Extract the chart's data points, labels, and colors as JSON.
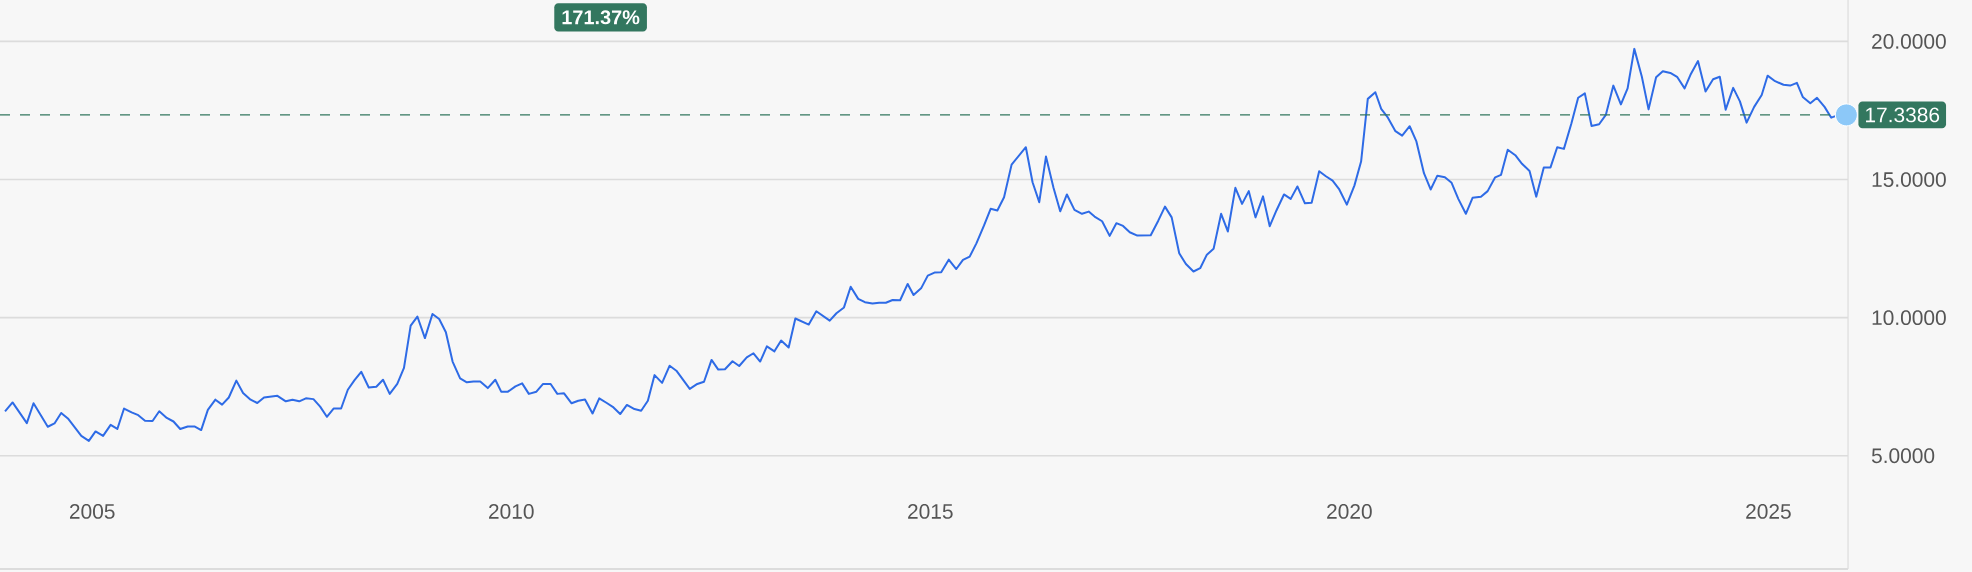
{
  "chart_data": {
    "type": "line",
    "xlim": [
      2003.9,
      2025.95
    ],
    "xticks": [
      2005,
      2010,
      2015,
      2020,
      2025
    ],
    "ylim": [
      0.9,
      21.5
    ],
    "yticks": [
      {
        "value": 5,
        "label": "5.0000"
      },
      {
        "value": 10,
        "label": "10.0000"
      },
      {
        "value": 15,
        "label": "15.0000"
      },
      {
        "value": 20,
        "label": "20.0000"
      }
    ],
    "grid": "y",
    "series": [
      {
        "color": "#2e6be6",
        "x": [
          2003.96,
          2004.05,
          2004.22,
          2004.3,
          2004.47,
          2004.55,
          2004.63,
          2004.71,
          2004.87,
          2004.96,
          2005.04,
          2005.13,
          2005.22,
          2005.3,
          2005.38,
          2005.47,
          2005.55,
          2005.63,
          2005.72,
          2005.8,
          2005.89,
          2005.97,
          2006.05,
          2006.14,
          2006.22,
          2006.3,
          2006.38,
          2006.47,
          2006.55,
          2006.63,
          2006.72,
          2006.8,
          2006.89,
          2006.97,
          2007.05,
          2007.21,
          2007.31,
          2007.39,
          2007.47,
          2007.55,
          2007.64,
          2007.72,
          2007.8,
          2007.88,
          2007.97,
          2008.05,
          2008.13,
          2008.21,
          2008.3,
          2008.39,
          2008.47,
          2008.55,
          2008.64,
          2008.72,
          2008.8,
          2008.88,
          2008.97,
          2009.06,
          2009.14,
          2009.22,
          2009.3,
          2009.39,
          2009.47,
          2009.55,
          2009.63,
          2009.72,
          2009.81,
          2009.88,
          2009.96,
          2010.05,
          2010.13,
          2010.21,
          2010.3,
          2010.38,
          2010.47,
          2010.55,
          2010.63,
          2010.72,
          2010.8,
          2010.88,
          2010.97,
          2011.05,
          2011.14,
          2011.22,
          2011.3,
          2011.38,
          2011.47,
          2011.55,
          2011.63,
          2011.71,
          2011.8,
          2011.89,
          2011.97,
          2012.13,
          2012.22,
          2012.3,
          2012.39,
          2012.47,
          2012.55,
          2012.64,
          2012.72,
          2012.81,
          2012.89,
          2012.97,
          2013.05,
          2013.14,
          2013.22,
          2013.31,
          2013.39,
          2013.55,
          2013.64,
          2013.8,
          2013.88,
          2013.97,
          2014.05,
          2014.14,
          2014.22,
          2014.31,
          2014.39,
          2014.47,
          2014.55,
          2014.64,
          2014.73,
          2014.8,
          2014.89,
          2014.97,
          2015.05,
          2015.13,
          2015.22,
          2015.31,
          2015.39,
          2015.47,
          2015.55,
          2015.64,
          2015.72,
          2015.8,
          2015.88,
          2015.97,
          2016.14,
          2016.22,
          2016.3,
          2016.38,
          2016.47,
          2016.55,
          2016.63,
          2016.72,
          2016.81,
          2016.89,
          2016.96,
          2017.05,
          2017.14,
          2017.22,
          2017.3,
          2017.38,
          2017.47,
          2017.63,
          2017.72,
          2017.8,
          2017.88,
          2017.97,
          2018.05,
          2018.14,
          2018.22,
          2018.3,
          2018.38,
          2018.47,
          2018.55,
          2018.64,
          2018.72,
          2018.8,
          2018.88,
          2018.97,
          2019.05,
          2019.13,
          2019.22,
          2019.3,
          2019.38,
          2019.47,
          2019.55,
          2019.64,
          2019.72,
          2019.8,
          2019.88,
          2019.97,
          2020.06,
          2020.14,
          2020.22,
          2020.31,
          2020.38,
          2020.46,
          2020.55,
          2020.63,
          2020.72,
          2020.8,
          2020.89,
          2020.97,
          2021.05,
          2021.14,
          2021.22,
          2021.3,
          2021.39,
          2021.47,
          2021.57,
          2021.65,
          2021.74,
          2021.81,
          2021.89,
          2021.98,
          2022.06,
          2022.15,
          2022.23,
          2022.32,
          2022.4,
          2022.48,
          2022.56,
          2022.65,
          2022.73,
          2022.81,
          2022.89,
          2022.98,
          2023.06,
          2023.15,
          2023.24,
          2023.32,
          2023.4,
          2023.49,
          2023.57,
          2023.66,
          2023.74,
          2023.83,
          2023.91,
          2024.0,
          2024.07,
          2024.16,
          2024.25,
          2024.34,
          2024.42,
          2024.49,
          2024.58,
          2024.66,
          2024.74,
          2024.83,
          2024.92,
          2024.99,
          2025.08,
          2025.18,
          2025.26,
          2025.34,
          2025.41,
          2025.5,
          2025.58,
          2025.67,
          2025.75,
          2025.84,
          2025.93
        ],
        "values": [
          6.61,
          6.93,
          6.18,
          6.9,
          6.05,
          6.17,
          6.55,
          6.35,
          5.72,
          5.54,
          5.88,
          5.72,
          6.12,
          5.97,
          6.71,
          6.57,
          6.47,
          6.27,
          6.26,
          6.61,
          6.37,
          6.24,
          5.97,
          6.06,
          6.06,
          5.93,
          6.66,
          7.03,
          6.85,
          7.11,
          7.72,
          7.27,
          7.03,
          6.91,
          7.11,
          7.17,
          6.97,
          7.03,
          6.97,
          7.08,
          7.05,
          6.78,
          6.41,
          6.71,
          6.71,
          7.39,
          7.74,
          8.04,
          7.47,
          7.5,
          7.75,
          7.24,
          7.6,
          8.18,
          9.71,
          10.04,
          9.26,
          10.13,
          9.95,
          9.47,
          8.41,
          7.8,
          7.66,
          7.69,
          7.69,
          7.45,
          7.75,
          7.32,
          7.32,
          7.51,
          7.62,
          7.24,
          7.32,
          7.6,
          7.6,
          7.24,
          7.26,
          6.9,
          6.99,
          7.04,
          6.53,
          7.08,
          6.91,
          6.75,
          6.51,
          6.84,
          6.69,
          6.63,
          6.99,
          7.92,
          7.64,
          8.26,
          8.08,
          7.42,
          7.6,
          7.68,
          8.47,
          8.12,
          8.13,
          8.42,
          8.25,
          8.56,
          8.71,
          8.41,
          8.96,
          8.78,
          9.17,
          8.92,
          9.97,
          9.75,
          10.23,
          9.89,
          10.16,
          10.37,
          11.12,
          10.68,
          10.56,
          10.51,
          10.54,
          10.54,
          10.64,
          10.63,
          11.22,
          10.82,
          11.06,
          11.52,
          11.63,
          11.64,
          12.1,
          11.76,
          12.09,
          12.21,
          12.69,
          13.33,
          13.94,
          13.88,
          14.36,
          15.54,
          16.17,
          14.9,
          14.18,
          15.83,
          14.7,
          13.85,
          14.46,
          13.9,
          13.76,
          13.84,
          13.66,
          13.49,
          12.96,
          13.42,
          13.32,
          13.09,
          12.97,
          12.98,
          13.51,
          14.02,
          13.63,
          12.33,
          11.94,
          11.67,
          11.79,
          12.28,
          12.49,
          13.76,
          13.12,
          14.7,
          14.12,
          14.58,
          13.63,
          14.39,
          13.31,
          13.88,
          14.46,
          14.3,
          14.75,
          14.14,
          14.16,
          15.3,
          15.12,
          14.96,
          14.64,
          14.09,
          14.78,
          15.65,
          17.92,
          18.16,
          17.56,
          17.24,
          16.75,
          16.59,
          16.93,
          16.38,
          15.23,
          14.64,
          15.14,
          15.08,
          14.88,
          14.3,
          13.76,
          14.34,
          14.38,
          14.58,
          15.08,
          15.17,
          16.08,
          15.88,
          15.57,
          15.31,
          14.38,
          15.44,
          15.44,
          16.17,
          16.11,
          17.04,
          17.96,
          18.12,
          16.94,
          17.0,
          17.34,
          18.4,
          17.72,
          18.3,
          19.73,
          18.72,
          17.54,
          18.7,
          18.92,
          18.86,
          18.72,
          18.3,
          18.79,
          19.29,
          18.19,
          18.63,
          18.72,
          17.53,
          18.32,
          17.83,
          17.06,
          17.63,
          18.06,
          18.76,
          18.56,
          18.43,
          18.4,
          18.5,
          17.99,
          17.76,
          17.96,
          17.63,
          17.24,
          17.34,
          17.34
        ]
      },
      {
        "type": "scatter",
        "color": "#8cc8f8",
        "marker": "circle",
        "x": [
          2025.93
        ],
        "values": [
          17.34
        ]
      }
    ],
    "ref_lines": [
      {
        "axis": "y",
        "value": 17.3386,
        "label": "17.3386",
        "color": "#33775f",
        "line_style": "dashed"
      }
    ],
    "annotations": [
      "171.37%"
    ]
  }
}
